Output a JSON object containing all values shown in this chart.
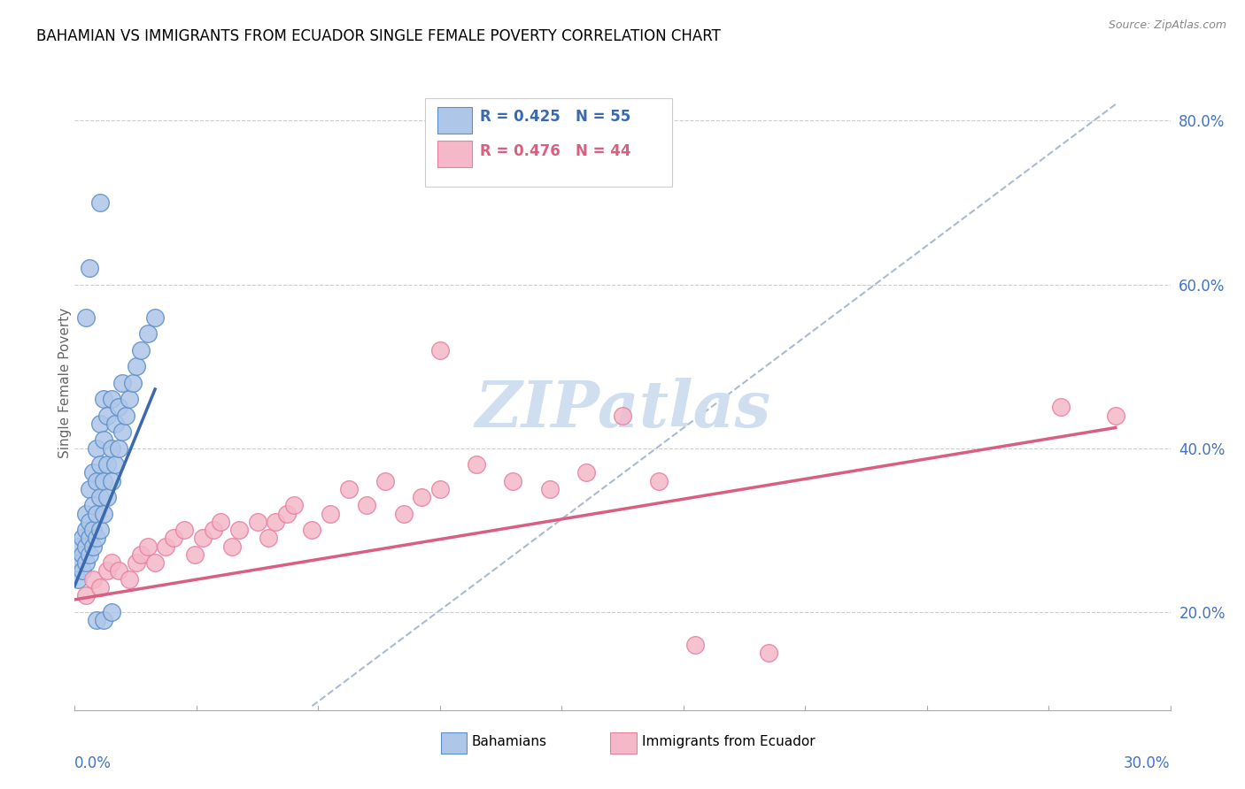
{
  "title": "BAHAMIAN VS IMMIGRANTS FROM ECUADOR SINGLE FEMALE POVERTY CORRELATION CHART",
  "source": "Source: ZipAtlas.com",
  "ylabel": "Single Female Poverty",
  "right_yticks": [
    0.2,
    0.4,
    0.6,
    0.8
  ],
  "right_yticklabels": [
    "20.0%",
    "40.0%",
    "60.0%",
    "80.0%"
  ],
  "xlim": [
    0.0,
    0.3
  ],
  "ylim": [
    0.08,
    0.88
  ],
  "blue_color": "#aec6e8",
  "pink_color": "#f4b8c8",
  "blue_edge_color": "#5b8fc9",
  "pink_edge_color": "#e87fa0",
  "blue_line_color": "#3a6aad",
  "pink_line_color": "#d95f80",
  "watermark_color": "#d0dff0",
  "watermark_text": "ZIPatlas",
  "blue_scatter": [
    [
      0.001,
      0.24
    ],
    [
      0.001,
      0.26
    ],
    [
      0.001,
      0.28
    ],
    [
      0.002,
      0.25
    ],
    [
      0.002,
      0.27
    ],
    [
      0.002,
      0.29
    ],
    [
      0.003,
      0.26
    ],
    [
      0.003,
      0.28
    ],
    [
      0.003,
      0.3
    ],
    [
      0.003,
      0.32
    ],
    [
      0.004,
      0.27
    ],
    [
      0.004,
      0.29
    ],
    [
      0.004,
      0.31
    ],
    [
      0.004,
      0.35
    ],
    [
      0.005,
      0.28
    ],
    [
      0.005,
      0.3
    ],
    [
      0.005,
      0.33
    ],
    [
      0.005,
      0.37
    ],
    [
      0.006,
      0.29
    ],
    [
      0.006,
      0.32
    ],
    [
      0.006,
      0.36
    ],
    [
      0.006,
      0.4
    ],
    [
      0.007,
      0.3
    ],
    [
      0.007,
      0.34
    ],
    [
      0.007,
      0.38
    ],
    [
      0.007,
      0.43
    ],
    [
      0.008,
      0.32
    ],
    [
      0.008,
      0.36
    ],
    [
      0.008,
      0.41
    ],
    [
      0.008,
      0.46
    ],
    [
      0.009,
      0.34
    ],
    [
      0.009,
      0.38
    ],
    [
      0.009,
      0.44
    ],
    [
      0.01,
      0.36
    ],
    [
      0.01,
      0.4
    ],
    [
      0.01,
      0.46
    ],
    [
      0.011,
      0.38
    ],
    [
      0.011,
      0.43
    ],
    [
      0.012,
      0.4
    ],
    [
      0.012,
      0.45
    ],
    [
      0.013,
      0.42
    ],
    [
      0.013,
      0.48
    ],
    [
      0.014,
      0.44
    ],
    [
      0.015,
      0.46
    ],
    [
      0.016,
      0.48
    ],
    [
      0.017,
      0.5
    ],
    [
      0.018,
      0.52
    ],
    [
      0.02,
      0.54
    ],
    [
      0.022,
      0.56
    ],
    [
      0.003,
      0.56
    ],
    [
      0.004,
      0.62
    ],
    [
      0.007,
      0.7
    ],
    [
      0.006,
      0.19
    ],
    [
      0.008,
      0.19
    ],
    [
      0.01,
      0.2
    ]
  ],
  "pink_scatter": [
    [
      0.003,
      0.22
    ],
    [
      0.005,
      0.24
    ],
    [
      0.007,
      0.23
    ],
    [
      0.009,
      0.25
    ],
    [
      0.01,
      0.26
    ],
    [
      0.012,
      0.25
    ],
    [
      0.015,
      0.24
    ],
    [
      0.017,
      0.26
    ],
    [
      0.018,
      0.27
    ],
    [
      0.02,
      0.28
    ],
    [
      0.022,
      0.26
    ],
    [
      0.025,
      0.28
    ],
    [
      0.027,
      0.29
    ],
    [
      0.03,
      0.3
    ],
    [
      0.033,
      0.27
    ],
    [
      0.035,
      0.29
    ],
    [
      0.038,
      0.3
    ],
    [
      0.04,
      0.31
    ],
    [
      0.043,
      0.28
    ],
    [
      0.045,
      0.3
    ],
    [
      0.05,
      0.31
    ],
    [
      0.053,
      0.29
    ],
    [
      0.055,
      0.31
    ],
    [
      0.058,
      0.32
    ],
    [
      0.06,
      0.33
    ],
    [
      0.065,
      0.3
    ],
    [
      0.07,
      0.32
    ],
    [
      0.075,
      0.35
    ],
    [
      0.08,
      0.33
    ],
    [
      0.085,
      0.36
    ],
    [
      0.09,
      0.32
    ],
    [
      0.095,
      0.34
    ],
    [
      0.1,
      0.35
    ],
    [
      0.11,
      0.38
    ],
    [
      0.12,
      0.36
    ],
    [
      0.13,
      0.35
    ],
    [
      0.14,
      0.37
    ],
    [
      0.16,
      0.36
    ],
    [
      0.17,
      0.16
    ],
    [
      0.19,
      0.15
    ],
    [
      0.1,
      0.52
    ],
    [
      0.15,
      0.44
    ],
    [
      0.27,
      0.45
    ],
    [
      0.285,
      0.44
    ]
  ],
  "blue_line": [
    [
      0.0,
      0.232
    ],
    [
      0.022,
      0.472
    ]
  ],
  "pink_line": [
    [
      0.0,
      0.215
    ],
    [
      0.285,
      0.425
    ]
  ],
  "diag_line": [
    [
      0.065,
      0.085
    ],
    [
      0.285,
      0.82
    ]
  ]
}
